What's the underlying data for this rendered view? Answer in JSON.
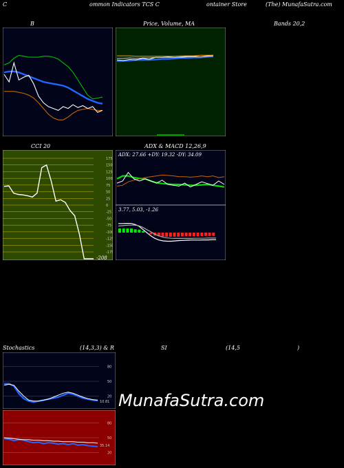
{
  "header": {
    "left": "C",
    "mid1": "ommon  Indicators TCS C",
    "mid2": "ontainer Store",
    "right": "(The) MunafaSutra.com"
  },
  "panels": {
    "bollinger": {
      "title": "B",
      "title_right": "Bands 20,2"
    },
    "price": {
      "title": "Price,  Volume,  MA"
    },
    "cci": {
      "title": "CCI 20"
    },
    "adx": {
      "title": "ADX  & MACD 12,26,9",
      "readout": "ADX: 27.66  +DY: 19.32  -DY: 34.09"
    },
    "macd": {
      "readout": "3.77,  5.03,  -1.26"
    },
    "stoch": {
      "title_left": "Stochastics",
      "title_mid": "(14,3,3) & R",
      "title_mid2": "SI",
      "title_right": "(14,5",
      "title_close": ")"
    }
  },
  "watermark": "MunafaSutra.com",
  "colors": {
    "dark_navy": "#02041a",
    "dark_green": "#002200",
    "olive": "#2e4a00",
    "dark_red": "#8c0000"
  },
  "chart_data": [
    {
      "type": "line",
      "name": "bollinger",
      "series": [
        {
          "color": "#00c000",
          "values": [
            0.68,
            0.7,
            0.75,
            0.78,
            0.77,
            0.76,
            0.76,
            0.76,
            0.77,
            0.77,
            0.76,
            0.74,
            0.7,
            0.66,
            0.6,
            0.52,
            0.44,
            0.36,
            0.32,
            0.33,
            0.34
          ]
        },
        {
          "color": "#2266ff",
          "values": [
            0.6,
            0.61,
            0.61,
            0.6,
            0.58,
            0.56,
            0.54,
            0.52,
            0.5,
            0.49,
            0.48,
            0.47,
            0.46,
            0.44,
            0.41,
            0.38,
            0.35,
            0.32,
            0.3,
            0.28,
            0.27
          ]
        },
        {
          "color": "#cc6600",
          "values": [
            0.4,
            0.4,
            0.4,
            0.39,
            0.38,
            0.36,
            0.33,
            0.28,
            0.22,
            0.16,
            0.12,
            0.1,
            0.1,
            0.13,
            0.17,
            0.2,
            0.21,
            0.22,
            0.21,
            0.2,
            0.2
          ]
        },
        {
          "color": "#ffffff",
          "values": [
            0.58,
            0.5,
            0.7,
            0.52,
            0.55,
            0.57,
            0.48,
            0.35,
            0.28,
            0.24,
            0.22,
            0.2,
            0.24,
            0.22,
            0.26,
            0.23,
            0.25,
            0.22,
            0.24,
            0.18,
            0.2
          ]
        }
      ]
    },
    {
      "type": "line",
      "name": "price",
      "series": [
        {
          "color": "#2266ff",
          "values": [
            0.35,
            0.35,
            0.34,
            0.33,
            0.33,
            0.33,
            0.32,
            0.31,
            0.31,
            0.3,
            0.29,
            0.29,
            0.28,
            0.28,
            0.27,
            0.26
          ]
        },
        {
          "color": "#ffffff",
          "values": [
            0.33,
            0.34,
            0.32,
            0.33,
            0.3,
            0.32,
            0.28,
            0.28,
            0.27,
            0.28,
            0.27,
            0.26,
            0.26,
            0.27,
            0.25,
            0.24
          ]
        },
        {
          "color": "#ff9900",
          "values": [
            0.25,
            0.25,
            0.25,
            0.26,
            0.26,
            0.26,
            0.26,
            0.26,
            0.26,
            0.26,
            0.25,
            0.25,
            0.25,
            0.24,
            0.24,
            0.24
          ]
        },
        {
          "color": "#cccccc",
          "values": [
            0.3,
            0.3,
            0.29,
            0.3,
            0.29,
            0.29,
            0.28,
            0.28,
            0.28,
            0.28,
            0.28,
            0.27,
            0.27,
            0.27,
            0.26,
            0.26
          ]
        }
      ]
    },
    {
      "type": "line",
      "name": "cci",
      "y_ticks": [
        "175",
        "150",
        "125",
        "100",
        "75",
        "50",
        "25",
        "0",
        "-25",
        "-50",
        "-75",
        "-100",
        "-125",
        "-150",
        "-175"
      ],
      "last_value_label": "-208",
      "series": [
        {
          "color": "#ffffff",
          "values": [
            70,
            72,
            45,
            40,
            38,
            35,
            30,
            45,
            140,
            150,
            90,
            15,
            20,
            10,
            -20,
            -40,
            -110,
            -208,
            -208,
            -208
          ]
        }
      ]
    },
    {
      "type": "line",
      "name": "adx",
      "series": [
        {
          "color": "#00dd00",
          "values": [
            0.55,
            0.62,
            0.62,
            0.58,
            0.56,
            0.55,
            0.5,
            0.46,
            0.44,
            0.43,
            0.42,
            0.42,
            0.41,
            0.4,
            0.4,
            0.41,
            0.42,
            0.4,
            0.38,
            0.36
          ]
        },
        {
          "color": "#cc6600",
          "values": [
            0.38,
            0.4,
            0.48,
            0.52,
            0.55,
            0.58,
            0.6,
            0.62,
            0.64,
            0.63,
            0.62,
            0.6,
            0.6,
            0.59,
            0.6,
            0.62,
            0.6,
            0.62,
            0.58,
            0.6
          ]
        },
        {
          "color": "#ffffff",
          "values": [
            0.45,
            0.5,
            0.7,
            0.55,
            0.5,
            0.55,
            0.5,
            0.45,
            0.52,
            0.42,
            0.4,
            0.38,
            0.45,
            0.36,
            0.42,
            0.48,
            0.44,
            0.4,
            0.5,
            0.42
          ]
        }
      ]
    },
    {
      "type": "bar",
      "name": "macd",
      "values": [
        0.25,
        0.25,
        0.25,
        0.25,
        0.2,
        0.18,
        0.1,
        0.0,
        -0.1,
        -0.18,
        -0.22,
        -0.24,
        -0.25,
        -0.25,
        -0.24,
        -0.24,
        -0.23,
        -0.22,
        -0.22,
        -0.22,
        -0.22,
        -0.21,
        -0.2,
        -0.2,
        -0.2
      ],
      "series": [
        {
          "color": "#ffffff",
          "values": [
            0.55,
            0.55,
            0.56,
            0.56,
            0.5,
            0.4,
            0.2,
            0.0,
            -0.2,
            -0.35,
            -0.45,
            -0.5,
            -0.52,
            -0.52,
            -0.5,
            -0.48,
            -0.47,
            -0.46,
            -0.45,
            -0.45,
            -0.45,
            -0.44,
            -0.44,
            -0.43,
            -0.43
          ]
        },
        {
          "color": "#aaaaaa",
          "values": [
            0.4,
            0.42,
            0.44,
            0.45,
            0.45,
            0.42,
            0.32,
            0.18,
            0.05,
            -0.1,
            -0.2,
            -0.28,
            -0.32,
            -0.34,
            -0.35,
            -0.35,
            -0.35,
            -0.35,
            -0.35,
            -0.34,
            -0.34,
            -0.34,
            -0.33,
            -0.33,
            -0.33
          ]
        }
      ]
    },
    {
      "type": "line",
      "name": "stochastics",
      "y_ticks": [
        "80",
        "50",
        "20"
      ],
      "last_value_label": "10.81",
      "series": [
        {
          "color": "#2266ff",
          "values": [
            45,
            45,
            40,
            25,
            15,
            10,
            8,
            10,
            12,
            14,
            16,
            18,
            22,
            26,
            24,
            20,
            16,
            14,
            12,
            11
          ]
        },
        {
          "color": "#ffffff",
          "values": [
            42,
            44,
            42,
            30,
            20,
            12,
            10,
            10,
            12,
            14,
            18,
            22,
            26,
            28,
            26,
            22,
            18,
            15,
            13,
            12
          ]
        }
      ]
    },
    {
      "type": "line",
      "name": "rsi",
      "y_ticks": [
        "80",
        "50",
        "20"
      ],
      "last_value_label": "35.14",
      "series": [
        {
          "color": "#2266ff",
          "values": [
            48,
            47,
            44,
            46,
            45,
            42,
            40,
            41,
            38,
            40,
            39,
            37,
            38,
            36,
            38,
            35,
            36,
            34,
            33,
            32
          ]
        },
        {
          "color": "#ffffff",
          "values": [
            50,
            49,
            48,
            47,
            46,
            46,
            45,
            45,
            44,
            44,
            43,
            43,
            42,
            42,
            42,
            41,
            41,
            40,
            40,
            39
          ]
        }
      ]
    }
  ]
}
